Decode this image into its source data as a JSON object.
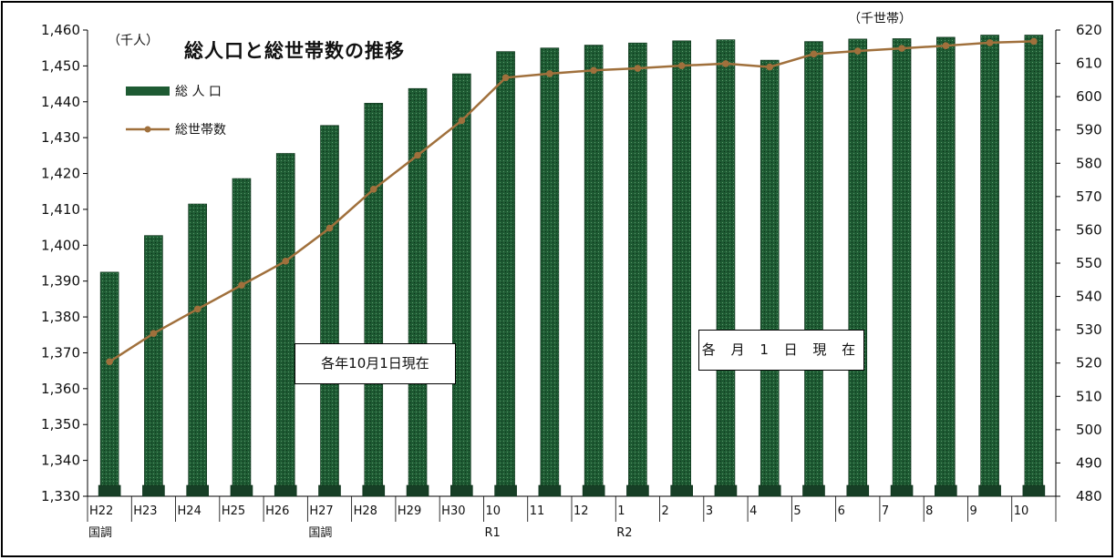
{
  "chart_data": {
    "type": "bar",
    "title": "総人口と総世帯数の推移",
    "left_unit": "（千人）",
    "right_unit": "（千世帯）",
    "categories": [
      "H22",
      "H23",
      "H24",
      "H25",
      "H26",
      "H27",
      "H28",
      "H29",
      "H30",
      "10",
      "11",
      "12",
      "1",
      "2",
      "3",
      "4",
      "5",
      "6",
      "7",
      "8",
      "9",
      "10"
    ],
    "category_sublabels": [
      "国調",
      "",
      "",
      "",
      "",
      "国調",
      "",
      "",
      "",
      "R1",
      "",
      "",
      "R2",
      "",
      "",
      "",
      "",
      "",
      "",
      "",
      "",
      ""
    ],
    "y_left": {
      "min": 1330,
      "max": 1460,
      "step": 10,
      "ticks": [
        "1,330",
        "1,340",
        "1,350",
        "1,360",
        "1,370",
        "1,380",
        "1,390",
        "1,400",
        "1,410",
        "1,420",
        "1,430",
        "1,440",
        "1,450",
        "1,460"
      ]
    },
    "y_right": {
      "min": 480,
      "max": 620,
      "step": 10,
      "ticks": [
        "480",
        "490",
        "500",
        "510",
        "520",
        "530",
        "540",
        "550",
        "560",
        "570",
        "580",
        "590",
        "600",
        "610",
        "620"
      ]
    },
    "series": [
      {
        "name": "総 人 口",
        "type": "bar",
        "axis": "left",
        "color": "#1e5b33",
        "values": [
          1392.5,
          1402.7,
          1411.5,
          1418.6,
          1425.6,
          1433.4,
          1439.6,
          1443.7,
          1447.8,
          1454.0,
          1455.0,
          1455.8,
          1456.4,
          1457.0,
          1457.3,
          1451.6,
          1456.8,
          1457.5,
          1457.6,
          1458.0,
          1458.6,
          1458.6
        ]
      },
      {
        "name": "総世帯数",
        "type": "line",
        "axis": "right",
        "color": "#a0703c",
        "values": [
          520.4,
          528.9,
          536.2,
          543.4,
          550.6,
          560.5,
          572.2,
          582.4,
          592.8,
          605.7,
          606.9,
          607.9,
          608.5,
          609.3,
          609.9,
          608.9,
          612.8,
          613.7,
          614.5,
          615.3,
          616.2,
          616.6
        ]
      }
    ],
    "annotations": [
      "各年10月1日現在",
      "各 月 1 日 現 在"
    ],
    "legend_position": "top-left",
    "grid": false
  }
}
